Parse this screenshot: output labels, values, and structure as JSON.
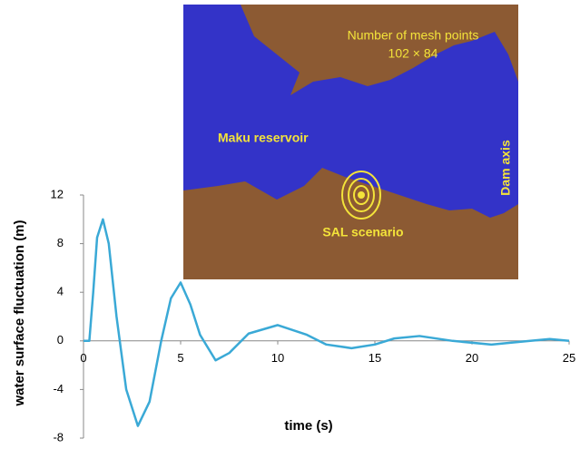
{
  "chart_data": {
    "type": "line",
    "x_label": "time (s)",
    "y_label": "water surface fluctuation (m)",
    "x": [
      0,
      0.3,
      0.5,
      0.7,
      1,
      1.3,
      1.7,
      2.2,
      2.8,
      3.4,
      4,
      4.5,
      5,
      5.5,
      6,
      6.8,
      7.5,
      8.5,
      10,
      11.5,
      12.5,
      13.8,
      15,
      16,
      17.3,
      19,
      21,
      23,
      24,
      25
    ],
    "series": [
      {
        "color": "#3aa9d6",
        "values": [
          0,
          0,
          4,
          8.5,
          10,
          8,
          2,
          -4,
          -7,
          -5,
          0,
          3.5,
          4.8,
          3,
          0.5,
          -1.6,
          -1,
          0.6,
          1.3,
          0.5,
          -0.3,
          -0.6,
          -0.3,
          0.2,
          0.4,
          0,
          -0.3,
          0,
          0.15,
          0
        ]
      }
    ],
    "xlim": [
      0,
      25
    ],
    "xticks": [
      0,
      5,
      10,
      15,
      20,
      25
    ],
    "ylim": [
      -8,
      12
    ],
    "yticks": [
      12,
      8,
      4,
      0,
      -4,
      -8
    ]
  },
  "inset": {
    "mesh_title": "Number of mesh points",
    "mesh_size": "102 × 84",
    "reservoir": "Maku reservoir",
    "dam": "Dam axis",
    "scenario": "SAL scenario"
  }
}
